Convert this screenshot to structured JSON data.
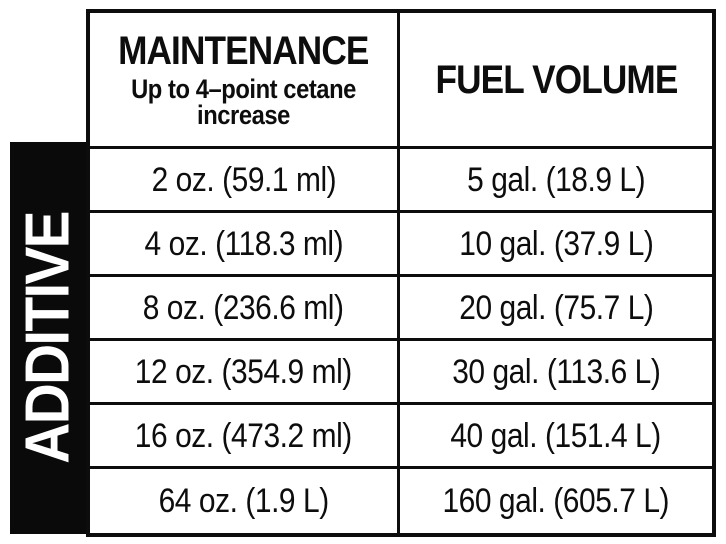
{
  "sidebar": {
    "label": "ADDITIVE"
  },
  "table": {
    "header": {
      "col1_title": "MAINTENANCE",
      "col1_subtitle": "Up to 4–point cetane increase",
      "col2_title": "FUEL VOLUME"
    },
    "rows": [
      {
        "additive": "2 oz. (59.1 ml)",
        "fuel": "5 gal. (18.9 L)"
      },
      {
        "additive": "4 oz. (118.3 ml)",
        "fuel": "10 gal. (37.9 L)"
      },
      {
        "additive": "8 oz. (236.6 ml)",
        "fuel": "20 gal. (75.7 L)"
      },
      {
        "additive": "12 oz. (354.9 ml)",
        "fuel": "30 gal. (113.6 L)"
      },
      {
        "additive": "16 oz. (473.2 ml)",
        "fuel": "40 gal. (151.4 L)"
      },
      {
        "additive": "64 oz. (1.9 L)",
        "fuel": "160 gal. (605.7 L)"
      }
    ]
  },
  "colors": {
    "ink": "#0d0d0d",
    "banner_background": "#0a0a0a",
    "banner_text": "#ffffff",
    "background": "#ffffff"
  }
}
